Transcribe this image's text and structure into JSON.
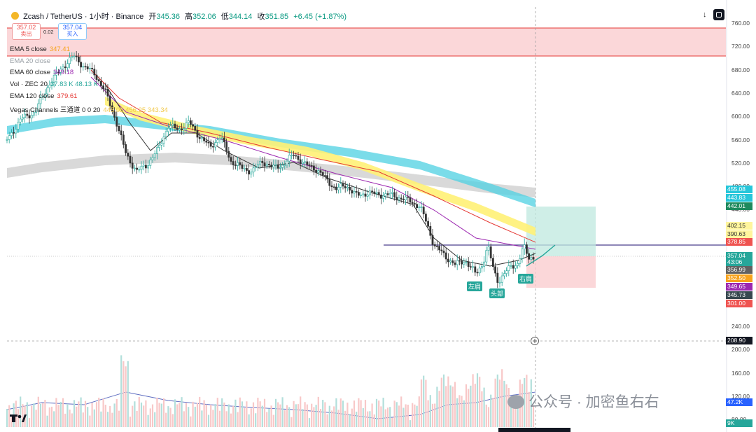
{
  "header": {
    "symbol": "Zcash / TetherUS · 1小时 · Binance",
    "open_label": "开",
    "open": "345.36",
    "high_label": "高",
    "high": "352.06",
    "low_label": "低",
    "low": "344.14",
    "close_label": "收",
    "close": "351.85",
    "change": "+6.45 (+1.87%)"
  },
  "trade": {
    "sell_price": "357.02",
    "sell_label": "卖出",
    "spread": "0.02",
    "buy_price": "357.04",
    "buy_label": "买入"
  },
  "indicators": [
    {
      "name": "EMA 5 close",
      "value": "347.41",
      "color": "#f7a21b"
    },
    {
      "name": "EMA 20 close",
      "value": "",
      "color": "#9aa0a6"
    },
    {
      "name": "EMA 60 close",
      "value": "349.18",
      "color": "#9c27b0"
    },
    {
      "name": "Vol · ZEC 20",
      "value": "37.83 K  48.13 K",
      "color": "#26a69a"
    },
    {
      "name": "EMA 120 close",
      "value": "379.61",
      "color": "#e53935"
    },
    {
      "name": "Vegas Channels 三通道 0 0 20",
      "value": "445.05  456.25  343.34",
      "color": "#f2c94c"
    }
  ],
  "y_axis": [
    "760.00",
    "720.00",
    "680.00",
    "640.00",
    "600.00",
    "560.00",
    "520.00",
    "480.00",
    "440.00",
    "400.00",
    "360.00",
    "320.00",
    "280.00",
    "240.00",
    "200.00",
    "160.00",
    "120.00",
    "80.00"
  ],
  "price_tags": [
    {
      "text": "455.08",
      "bg": "#26c6da"
    },
    {
      "text": "443.83",
      "bg": "#26c6da"
    },
    {
      "text": "442.01",
      "bg": "#1e8a5e"
    },
    {
      "text": "402.15",
      "bg": "#fff59d",
      "fg": "#333"
    },
    {
      "text": "390.63",
      "bg": "#fff59d",
      "fg": "#333"
    },
    {
      "text": "378.85",
      "bg": "#ef5350"
    },
    {
      "text": "357.04",
      "bg": "#26a69a"
    },
    {
      "text": "43:06",
      "bg": "#26a69a"
    },
    {
      "text": "356.99",
      "bg": "#616161"
    },
    {
      "text": "352.50",
      "bg": "#f7a21b"
    },
    {
      "text": "349.65",
      "bg": "#9c27b0"
    },
    {
      "text": "345.73",
      "bg": "#37474f"
    },
    {
      "text": "301.00",
      "bg": "#ef5350"
    },
    {
      "text": "208.90",
      "bg": "#131722"
    },
    {
      "text": "47.2K",
      "bg": "#2962ff"
    },
    {
      "text": "9K",
      "bg": "#26a69a"
    }
  ],
  "annotations": {
    "left_shoulder": "左肩",
    "head": "头部",
    "right_shoulder": "右肩"
  },
  "watermark": "公众号 · 加密鱼右右",
  "colors": {
    "up": "#26a69a",
    "down": "#ef5350",
    "candle": "#333333"
  }
}
